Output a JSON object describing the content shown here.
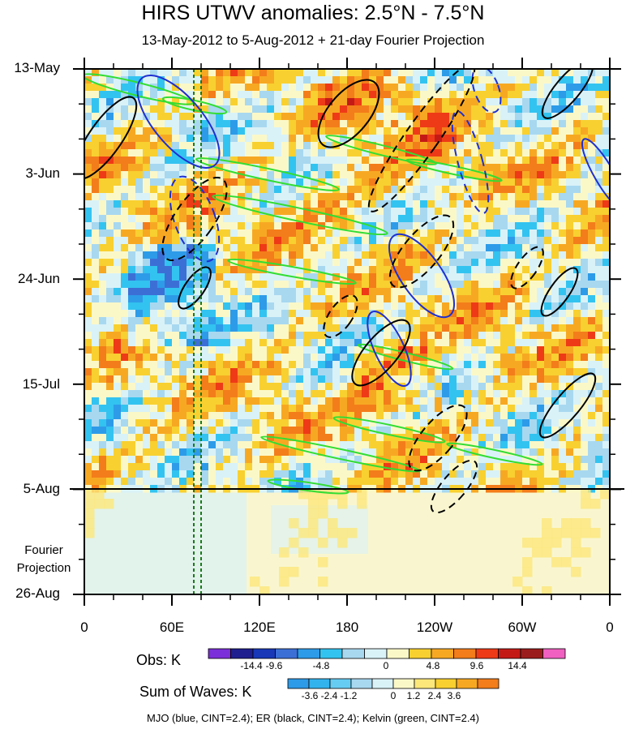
{
  "title": "HIRS UTWV anomalies: 2.5°N - 7.5°N",
  "subtitle": "13-May-2012 to 5-Aug-2012 + 21-day Fourier Projection",
  "y_ticks": [
    "13-May",
    "3-Jun",
    "24-Jun",
    "15-Jul",
    "5-Aug",
    "26-Aug"
  ],
  "x_ticks": [
    "0",
    "60E",
    "120E",
    "180",
    "120W",
    "60W",
    "0"
  ],
  "projection_label": [
    "Fourier",
    "Projection"
  ],
  "obs_colorbar": {
    "title": "Obs: K",
    "labels": [
      "-14.4",
      "-9.6",
      "-4.8",
      "0",
      "4.8",
      "9.6",
      "14.4"
    ],
    "colors": [
      "#7b2fd8",
      "#1f1f8f",
      "#1838b8",
      "#3c6fd6",
      "#2d9be8",
      "#33c3f0",
      "#a8d8f0",
      "#d9f2f8",
      "#fbf8c8",
      "#f8d030",
      "#f7a823",
      "#f37d1a",
      "#ee3a17",
      "#c41a16",
      "#9b1c1c",
      "#f060c0"
    ]
  },
  "waves_colorbar": {
    "title": "Sum of Waves: K",
    "labels": [
      "-3.6",
      "-2.4",
      "-1.2",
      "0",
      "1.2",
      "2.4",
      "3.6"
    ],
    "colors": [
      "#2d9be8",
      "#33b3ee",
      "#66ccf2",
      "#a8d8f0",
      "#d9f2f8",
      "#fbf8c8",
      "#fce77a",
      "#f8d030",
      "#f7a823",
      "#f37d1a"
    ]
  },
  "footer": "MJO (blue, CINT=2.4); ER (black, CINT=2.4); Kelvin (green, CINT=2.4)",
  "colors": {
    "mjo": "#1f2fd0",
    "er": "#000000",
    "kelvin": "#33dd33",
    "vline": "#1a7a1a"
  },
  "chart_data": {
    "type": "heatmap",
    "xlabel": "",
    "ylabel": "",
    "x_axis": "longitude",
    "y_axis": "date",
    "x_range": [
      "0",
      "0"
    ],
    "y_range": [
      "13-May",
      "26-Aug"
    ],
    "observation_end": "5-Aug",
    "reference_longitudes": [
      "75E",
      "80E"
    ],
    "contour_sets": [
      {
        "name": "MJO",
        "color": "blue",
        "interval": 2.4
      },
      {
        "name": "ER",
        "color": "black",
        "interval": 2.4
      },
      {
        "name": "Kelvin",
        "color": "green",
        "interval": 2.4
      }
    ]
  }
}
